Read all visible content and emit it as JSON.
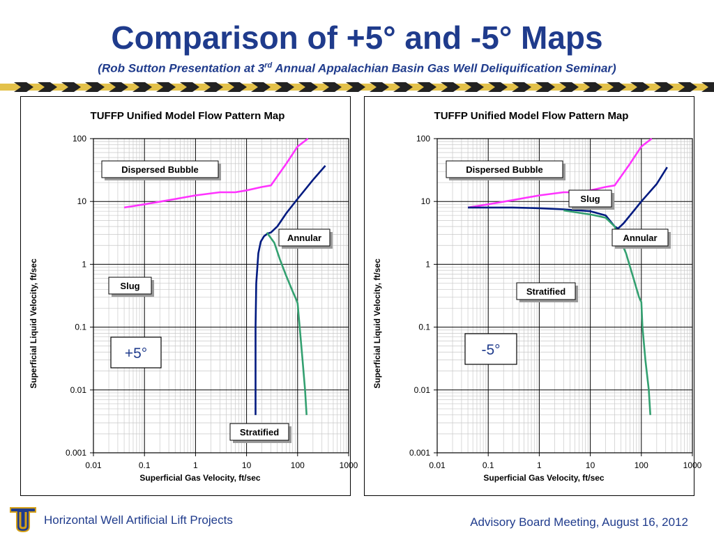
{
  "slide": {
    "title": "Comparison of +5° and -5° Maps",
    "subtitle_pre": "(Rob Sutton Presentation at 3",
    "subtitle_sup": "rd",
    "subtitle_post": " Annual Appalachian Basin Gas Well Deliquification Seminar)"
  },
  "footer": {
    "left_text": "Horizontal Well Artificial Lift Projects",
    "right_text": "Advisory Board Meeting, August 16, 2012"
  },
  "colors": {
    "title": "#1f3b8c",
    "dispersed_bubble_line": "#ff33ff",
    "slug_annular_line": "#001a80",
    "stratified_line": "#33a070"
  },
  "chart_data": [
    {
      "type": "line",
      "title": "TUFFP Unified Model Flow Pattern Map",
      "xlabel": "Superficial Gas Velocity, ft/sec",
      "ylabel": "Superficial Liquid Velocity, ft/sec",
      "x_scale": "log",
      "y_scale": "log",
      "xlim": [
        0.01,
        1000
      ],
      "ylim": [
        0.001,
        100
      ],
      "x_ticks": [
        "0.01",
        "0.1",
        "1",
        "10",
        "100",
        "1000"
      ],
      "y_ticks": [
        "0.001",
        "0.01",
        "0.1",
        "1",
        "10",
        "100"
      ],
      "grid": true,
      "inclination_label": "+5°",
      "region_labels": [
        "Dispersed Bubble",
        "Annular",
        "Slug",
        "Stratified"
      ],
      "series": [
        {
          "color": "#ff33ff",
          "x": [
            0.04,
            0.1,
            0.3,
            1,
            3,
            6,
            10,
            20,
            30,
            60,
            100,
            160
          ],
          "y": [
            8,
            9,
            10.5,
            12.5,
            14,
            14,
            15,
            17,
            18,
            40,
            75,
            100
          ]
        },
        {
          "color": "#001a80",
          "x": [
            15,
            15,
            15.5,
            17,
            19,
            22,
            26,
            30,
            40,
            60,
            100,
            200,
            350
          ],
          "y": [
            0.004,
            0.1,
            0.5,
            1.5,
            2.3,
            2.8,
            3.1,
            3.2,
            4,
            6.5,
            11,
            22,
            37
          ]
        },
        {
          "color": "#33a070",
          "x": [
            25,
            35,
            45,
            60,
            80,
            95,
            100,
            110,
            125,
            140,
            150
          ],
          "y": [
            3.2,
            2.2,
            1.2,
            0.65,
            0.37,
            0.27,
            0.24,
            0.1,
            0.03,
            0.01,
            0.004
          ]
        }
      ]
    },
    {
      "type": "line",
      "title": "TUFFP Unified Model Flow Pattern Map",
      "xlabel": "Superficial Gas Velocity, ft/sec",
      "ylabel": "Superficial Liquid Velocity, ft/sec",
      "x_scale": "log",
      "y_scale": "log",
      "xlim": [
        0.01,
        1000
      ],
      "ylim": [
        0.001,
        100
      ],
      "x_ticks": [
        "0.01",
        "0.1",
        "1",
        "10",
        "100",
        "1000"
      ],
      "y_ticks": [
        "0.001",
        "0.01",
        "0.1",
        "1",
        "10",
        "100"
      ],
      "grid": true,
      "inclination_label": "-5°",
      "region_labels": [
        "Dispersed Bubble",
        "Slug",
        "Annular",
        "Stratified"
      ],
      "series": [
        {
          "color": "#ff33ff",
          "x": [
            0.04,
            0.1,
            0.3,
            1,
            3,
            6,
            10,
            20,
            30,
            60,
            100,
            160
          ],
          "y": [
            8,
            9,
            10.5,
            12.5,
            14,
            14,
            15,
            17,
            18,
            40,
            75,
            100
          ]
        },
        {
          "color": "#001a80",
          "x": [
            0.04,
            0.1,
            0.3,
            1,
            3,
            10,
            20,
            25,
            30,
            35,
            45,
            70,
            100,
            200,
            320
          ],
          "y": [
            8,
            8,
            8,
            7.8,
            7.5,
            7,
            6,
            4.8,
            4,
            3.7,
            4.5,
            7,
            10,
            19,
            35
          ]
        },
        {
          "color": "#33a070",
          "x": [
            3,
            10,
            15,
            20,
            30,
            50,
            70,
            90,
            100,
            105,
            120,
            140,
            150
          ],
          "y": [
            7.2,
            6.2,
            5.8,
            5.5,
            4,
            1.5,
            0.6,
            0.3,
            0.25,
            0.1,
            0.03,
            0.01,
            0.004
          ]
        }
      ]
    }
  ]
}
